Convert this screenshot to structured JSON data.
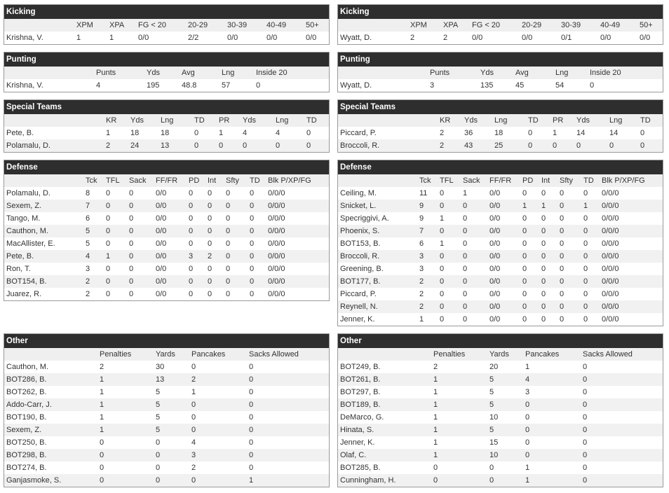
{
  "teams": [
    {
      "sections": [
        {
          "title": "Kicking",
          "header": [
            "XPM",
            "XPA",
            "FG < 20",
            "20-29",
            "30-39",
            "40-49",
            "50+"
          ],
          "rows": [
            [
              "Krishna, V.",
              1,
              1,
              "0/0",
              "2/2",
              "0/0",
              "0/0",
              "0/0"
            ]
          ]
        },
        {
          "title": "Punting",
          "header": [
            "Punts",
            "Yds",
            "Avg",
            "Lng",
            "Inside 20"
          ],
          "rows": [
            [
              "Krishna, V.",
              4,
              195,
              48.8,
              57,
              0
            ]
          ]
        },
        {
          "title": "Special Teams",
          "header": [
            "KR",
            "Yds",
            "Lng",
            "TD",
            "PR",
            "Yds",
            "Lng",
            "TD"
          ],
          "rows": [
            [
              "Pete, B.",
              1,
              18,
              18,
              0,
              1,
              4,
              4,
              0
            ],
            [
              "Polamalu, D.",
              2,
              24,
              13,
              0,
              0,
              0,
              0,
              0
            ]
          ]
        },
        {
          "title": "Defense",
          "header": [
            "Tck",
            "TFL",
            "Sack",
            "FF/FR",
            "PD",
            "Int",
            "Sfty",
            "TD",
            "Blk P/XP/FG"
          ],
          "rows": [
            [
              "Polamalu, D.",
              8,
              0,
              0,
              "0/0",
              0,
              0,
              0,
              0,
              "0/0/0"
            ],
            [
              "Sexem, Z.",
              7,
              0,
              0,
              "0/0",
              0,
              0,
              0,
              0,
              "0/0/0"
            ],
            [
              "Tango, M.",
              6,
              0,
              0,
              "0/0",
              0,
              0,
              0,
              0,
              "0/0/0"
            ],
            [
              "Cauthon, M.",
              5,
              0,
              0,
              "0/0",
              0,
              0,
              0,
              0,
              "0/0/0"
            ],
            [
              "MacAllister, E.",
              5,
              0,
              0,
              "0/0",
              0,
              0,
              0,
              0,
              "0/0/0"
            ],
            [
              "Pete, B.",
              4,
              1,
              0,
              "0/0",
              3,
              2,
              0,
              0,
              "0/0/0"
            ],
            [
              "Ron, T.",
              3,
              0,
              0,
              "0/0",
              0,
              0,
              0,
              0,
              "0/0/0"
            ],
            [
              "BOT154, B.",
              2,
              0,
              0,
              "0/0",
              0,
              0,
              0,
              0,
              "0/0/0"
            ],
            [
              "Juarez, R.",
              2,
              0,
              0,
              "0/0",
              0,
              0,
              0,
              0,
              "0/0/0"
            ]
          ]
        },
        {
          "title": "Other",
          "header": [
            "Penalties",
            "Yards",
            "Pancakes",
            "Sacks Allowed"
          ],
          "rows": [
            [
              "Cauthon, M.",
              2,
              30,
              0,
              0
            ],
            [
              "BOT286, B.",
              1,
              13,
              2,
              0
            ],
            [
              "BOT262, B.",
              1,
              5,
              1,
              0
            ],
            [
              "Addo-Carr, J.",
              1,
              5,
              0,
              0
            ],
            [
              "BOT190, B.",
              1,
              5,
              0,
              0
            ],
            [
              "Sexem, Z.",
              1,
              5,
              0,
              0
            ],
            [
              "BOT250, B.",
              0,
              0,
              4,
              0
            ],
            [
              "BOT298, B.",
              0,
              0,
              3,
              0
            ],
            [
              "BOT274, B.",
              0,
              0,
              2,
              0
            ],
            [
              "Ganjasmoke, S.",
              0,
              0,
              0,
              1
            ]
          ]
        }
      ]
    },
    {
      "sections": [
        {
          "title": "Kicking",
          "header": [
            "XPM",
            "XPA",
            "FG < 20",
            "20-29",
            "30-39",
            "40-49",
            "50+"
          ],
          "rows": [
            [
              "Wyatt, D.",
              2,
              2,
              "0/0",
              "0/0",
              "0/1",
              "0/0",
              "0/0"
            ]
          ]
        },
        {
          "title": "Punting",
          "header": [
            "Punts",
            "Yds",
            "Avg",
            "Lng",
            "Inside 20"
          ],
          "rows": [
            [
              "Wyatt, D.",
              3,
              135,
              45,
              54,
              0
            ]
          ]
        },
        {
          "title": "Special Teams",
          "header": [
            "KR",
            "Yds",
            "Lng",
            "TD",
            "PR",
            "Yds",
            "Lng",
            "TD"
          ],
          "rows": [
            [
              "Piccard, P.",
              2,
              36,
              18,
              0,
              1,
              14,
              14,
              0
            ],
            [
              "Broccoli, R.",
              2,
              43,
              25,
              0,
              0,
              0,
              0,
              0
            ]
          ]
        },
        {
          "title": "Defense",
          "header": [
            "Tck",
            "TFL",
            "Sack",
            "FF/FR",
            "PD",
            "Int",
            "Sfty",
            "TD",
            "Blk P/XP/FG"
          ],
          "rows": [
            [
              "Ceiling, M.",
              11,
              0,
              1,
              "0/0",
              0,
              0,
              0,
              0,
              "0/0/0"
            ],
            [
              "Snicket, L.",
              9,
              0,
              0,
              "0/0",
              1,
              1,
              0,
              1,
              "0/0/0"
            ],
            [
              "Specriggivi, A.",
              9,
              1,
              0,
              "0/0",
              0,
              0,
              0,
              0,
              "0/0/0"
            ],
            [
              "Phoenix, S.",
              7,
              0,
              0,
              "0/0",
              0,
              0,
              0,
              0,
              "0/0/0"
            ],
            [
              "BOT153, B.",
              6,
              1,
              0,
              "0/0",
              0,
              0,
              0,
              0,
              "0/0/0"
            ],
            [
              "Broccoli, R.",
              3,
              0,
              0,
              "0/0",
              0,
              0,
              0,
              0,
              "0/0/0"
            ],
            [
              "Greening, B.",
              3,
              0,
              0,
              "0/0",
              0,
              0,
              0,
              0,
              "0/0/0"
            ],
            [
              "BOT177, B.",
              2,
              0,
              0,
              "0/0",
              0,
              0,
              0,
              0,
              "0/0/0"
            ],
            [
              "Piccard, P.",
              2,
              0,
              0,
              "0/0",
              0,
              0,
              0,
              0,
              "0/0/0"
            ],
            [
              "Reynell, N.",
              2,
              0,
              0,
              "0/0",
              0,
              0,
              0,
              0,
              "0/0/0"
            ],
            [
              "Jenner, K.",
              1,
              0,
              0,
              "0/0",
              0,
              0,
              0,
              0,
              "0/0/0"
            ]
          ]
        },
        {
          "title": "Other",
          "header": [
            "Penalties",
            "Yards",
            "Pancakes",
            "Sacks Allowed"
          ],
          "rows": [
            [
              "BOT249, B.",
              2,
              20,
              1,
              0
            ],
            [
              "BOT261, B.",
              1,
              5,
              4,
              0
            ],
            [
              "BOT297, B.",
              1,
              5,
              3,
              0
            ],
            [
              "BOT189, B.",
              1,
              5,
              0,
              0
            ],
            [
              "DeMarco, G.",
              1,
              10,
              0,
              0
            ],
            [
              "Hinata, S.",
              1,
              5,
              0,
              0
            ],
            [
              "Jenner, K.",
              1,
              15,
              0,
              0
            ],
            [
              "Olaf, C.",
              1,
              10,
              0,
              0
            ],
            [
              "BOT285, B.",
              0,
              0,
              1,
              0
            ],
            [
              "Cunningham, H.",
              0,
              0,
              1,
              0
            ]
          ]
        }
      ]
    }
  ]
}
